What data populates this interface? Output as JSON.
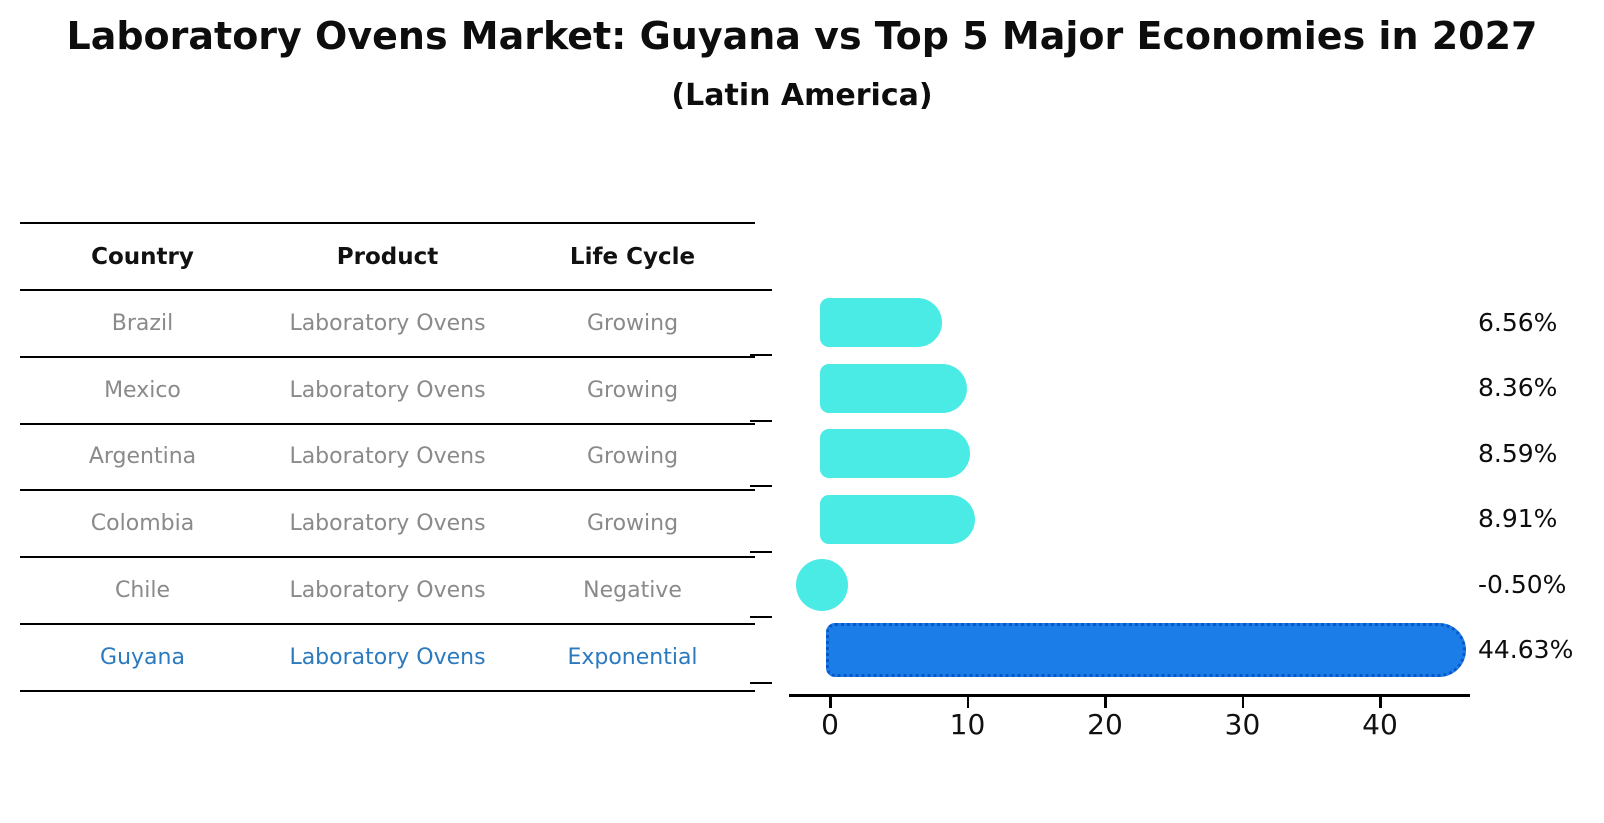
{
  "title": "Laboratory Ovens Market: Guyana vs Top 5 Major Economies in 2027",
  "subtitle": "(Latin America)",
  "table": {
    "columns": [
      "Country",
      "Product",
      "Life Cycle"
    ],
    "rows": [
      {
        "country": "Brazil",
        "product": "Laboratory Ovens",
        "life_cycle": "Growing",
        "highlight": false
      },
      {
        "country": "Mexico",
        "product": "Laboratory Ovens",
        "life_cycle": "Growing",
        "highlight": false
      },
      {
        "country": "Argentina",
        "product": "Laboratory Ovens",
        "life_cycle": "Growing",
        "highlight": false
      },
      {
        "country": "Colombia",
        "product": "Laboratory Ovens",
        "life_cycle": "Growing",
        "highlight": false
      },
      {
        "country": "Chile",
        "product": "Laboratory Ovens",
        "life_cycle": "Negative",
        "highlight": false
      },
      {
        "country": "Guyana",
        "product": "Laboratory Ovens",
        "life_cycle": "Exponential",
        "highlight": true
      }
    ]
  },
  "chart_data": {
    "type": "bar",
    "orientation": "horizontal",
    "categories": [
      "Brazil",
      "Mexico",
      "Argentina",
      "Colombia",
      "Chile",
      "Guyana"
    ],
    "values": [
      6.56,
      8.36,
      8.59,
      8.91,
      -0.5,
      44.63
    ],
    "value_labels": [
      "6.56%",
      "8.36%",
      "8.59%",
      "8.91%",
      "-0.50%",
      "44.63%"
    ],
    "highlight_index": 5,
    "xticks": [
      0,
      10,
      20,
      30,
      40
    ],
    "xlim": [
      -4,
      47
    ],
    "grid": false,
    "legend": "none",
    "bar_color": "#4aebe4",
    "highlight_bar_color": "#1b7ee8",
    "highlight_border_color": "#0a58c8",
    "highlight_text_color": "#2b7abf",
    "text_color": "#8a8a8a",
    "axis_color": "#000000"
  }
}
